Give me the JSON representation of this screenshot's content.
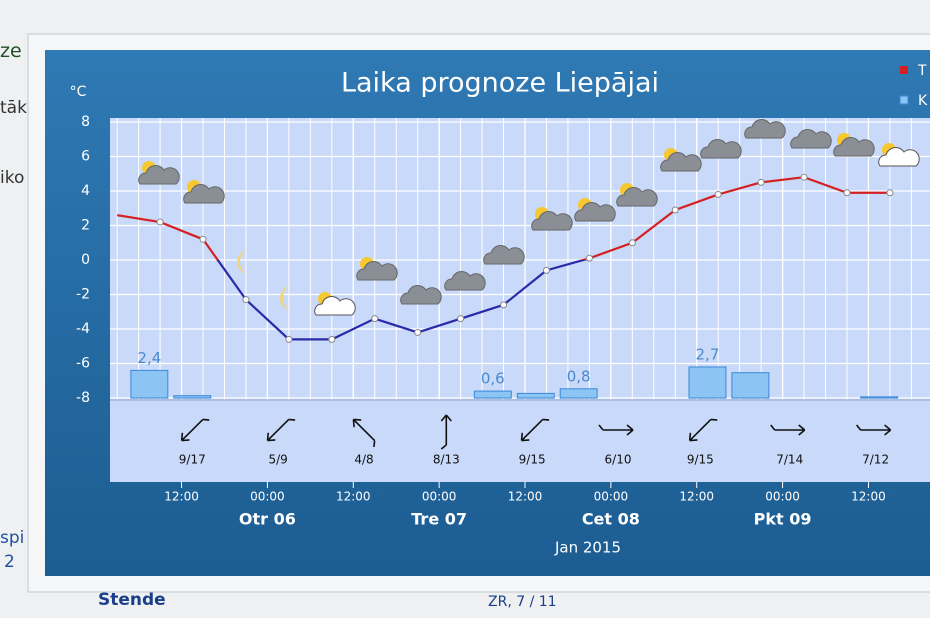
{
  "background_texts": [
    "ze",
    "tāk",
    "iko",
    "spi",
    "2",
    "Stende",
    "ZR, 7 / 11"
  ],
  "chart_data": {
    "type": "line",
    "title": "Laika prognoze Liepājai",
    "y_unit": "°C",
    "xlim": [
      2,
      118
    ],
    "xticks": [
      {
        "value": 12,
        "label": "12:00"
      },
      {
        "value": 24,
        "label": "00:00"
      },
      {
        "value": 36,
        "label": "12:00"
      },
      {
        "value": 48,
        "label": "00:00"
      },
      {
        "value": 60,
        "label": "12:00"
      },
      {
        "value": 72,
        "label": "00:00"
      },
      {
        "value": 84,
        "label": "12:00"
      },
      {
        "value": 96,
        "label": "00:00"
      },
      {
        "value": 108,
        "label": "12:00"
      }
    ],
    "days": [
      {
        "value": 24,
        "label": "Otr 06"
      },
      {
        "value": 48,
        "label": "Tre 07"
      },
      {
        "value": 72,
        "label": "Cet 08"
      },
      {
        "value": 96,
        "label": "Pkt 09"
      }
    ],
    "x_label": "Jan 2015",
    "ylim": [
      -8,
      8
    ],
    "yticks": [
      8,
      6,
      4,
      2,
      0,
      -2,
      -4,
      -6,
      -8
    ],
    "y2lim": [
      0,
      24
    ],
    "grid": true,
    "series": [
      {
        "name": "T",
        "type": "line",
        "color": "#d42020",
        "color_below_zero": "#2a2aa8",
        "x": [
          3,
          9,
          15,
          21,
          27,
          33,
          39,
          45,
          51,
          57,
          63,
          69,
          75,
          81,
          87,
          93,
          99,
          105,
          111
        ],
        "values": [
          2.6,
          2.2,
          1.2,
          -2.3,
          -4.6,
          -4.6,
          -3.4,
          -4.2,
          -3.4,
          -2.6,
          -0.6,
          0.1,
          1.0,
          2.9,
          3.8,
          4.5,
          4.8,
          3.9,
          3.9
        ]
      },
      {
        "name": "K",
        "type": "bar",
        "axis": "y2",
        "color": "#8cc4f4",
        "x": [
          7.5,
          13.5,
          55.5,
          61.5,
          67.5,
          85.5,
          91.5,
          109.5
        ],
        "values": [
          2.4,
          0.2,
          0.6,
          0.4,
          0.8,
          2.7,
          2.2,
          0.1
        ],
        "value_labels": [
          "2,4",
          null,
          "0,6",
          null,
          "0,8",
          "2,7",
          null,
          null
        ]
      }
    ],
    "wind": {
      "x": [
        13.5,
        25.5,
        37.5,
        49,
        61,
        73,
        84.5,
        97,
        109
      ],
      "labels": [
        "9/17",
        "5/9",
        "4/8",
        "8/13",
        "9/15",
        "6/10",
        "9/15",
        "7/14",
        "7/12"
      ],
      "directions": [
        135,
        135,
        225,
        270,
        135,
        0,
        135,
        0,
        0
      ]
    }
  }
}
